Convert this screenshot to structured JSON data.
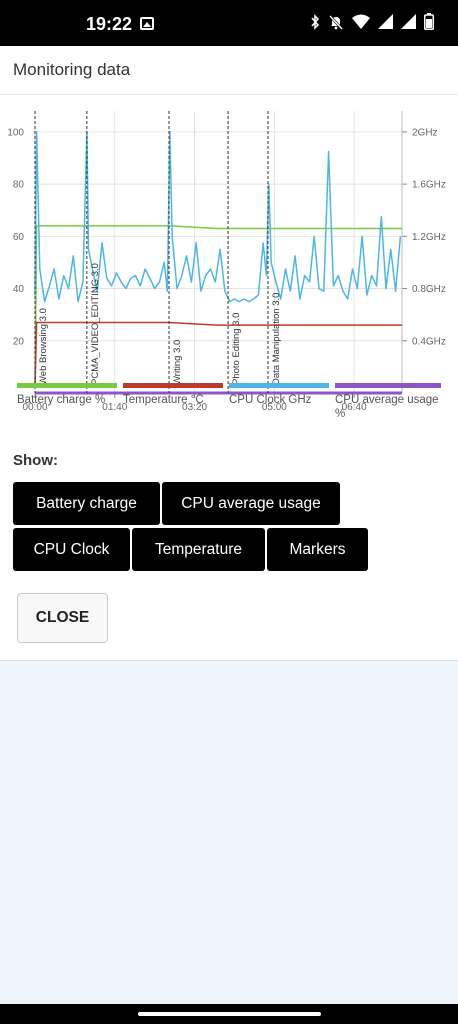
{
  "status_bar": {
    "time": "19:22",
    "icons": [
      "image-icon",
      "bluetooth-icon",
      "mute-icon",
      "wifi-icon",
      "signal-icon",
      "signal-icon",
      "battery-icon"
    ]
  },
  "dialog": {
    "title": "Monitoring data",
    "show_label": "Show:",
    "close_label": "CLOSE"
  },
  "buttons": {
    "battery_charge": "Battery charge",
    "cpu_average_usage": "CPU average usage",
    "cpu_clock": "CPU Clock",
    "temperature": "Temperature",
    "markers": "Markers"
  },
  "legend": {
    "battery": "Battery charge %",
    "temperature": "Temperature °C",
    "cpu_clock": "CPU Clock GHz",
    "cpu_avg": "CPU average usage %"
  },
  "colors": {
    "battery": "#7ac943",
    "temperature": "#c0392b",
    "cpu_clock": "#4db6e6",
    "cpu_avg": "#8e55c7",
    "marker_line": "#333333",
    "grid": "#e2e2e2"
  },
  "chart_data": {
    "type": "line",
    "xlabel": "",
    "ylabel": "",
    "x_unit": "minutes",
    "x_ticks": [
      "00:00",
      "01:40",
      "03:20",
      "05:00",
      "06:40"
    ],
    "y_left_ticks": [
      "100",
      "80",
      "60",
      "40",
      "20"
    ],
    "y_right_ticks": [
      "2GHz",
      "1.6GHz",
      "1.2GHz",
      "0.8GHz",
      "0.4GHz"
    ],
    "xlim": [
      0,
      460
    ],
    "ylim_left": [
      0,
      108
    ],
    "ylim_right": [
      0,
      2.16
    ],
    "markers": [
      {
        "x": 0,
        "label": "Web Browsing 3.0"
      },
      {
        "x": 65,
        "label": "PCMA_VIDEO_EDITING 3.0"
      },
      {
        "x": 168,
        "label": "Writing 3.0"
      },
      {
        "x": 242,
        "label": "Photo Editing 3.0"
      },
      {
        "x": 292,
        "label": "Data Manipulation 3.0"
      }
    ],
    "series": [
      {
        "name": "Battery charge %",
        "x": [
          0,
          2,
          65,
          170,
          228,
          460
        ],
        "y": [
          2,
          64,
          64,
          64,
          63,
          63
        ]
      },
      {
        "name": "Temperature °C",
        "x": [
          0,
          2,
          168,
          228,
          460
        ],
        "y": [
          2,
          27,
          27,
          26,
          26
        ]
      },
      {
        "name": "CPU Clock GHz",
        "x": [
          0,
          2,
          6,
          12,
          18,
          24,
          30,
          36,
          42,
          48,
          54,
          60,
          65,
          67,
          72,
          78,
          84,
          90,
          96,
          102,
          108,
          114,
          120,
          126,
          132,
          138,
          144,
          150,
          156,
          162,
          166,
          169,
          172,
          178,
          184,
          190,
          196,
          202,
          208,
          214,
          220,
          226,
          232,
          238,
          244,
          250,
          256,
          262,
          268,
          274,
          280,
          286,
          290,
          293,
          296,
          302,
          308,
          314,
          320,
          326,
          332,
          338,
          344,
          350,
          356,
          362,
          368,
          374,
          380,
          386,
          392,
          398,
          404,
          410,
          416,
          422,
          428,
          434,
          440,
          446,
          452,
          458
        ],
        "y": [
          0.75,
          2.0,
          0.95,
          0.7,
          0.82,
          0.95,
          0.72,
          0.9,
          0.8,
          1.05,
          0.7,
          0.85,
          2.0,
          1.1,
          0.95,
          0.78,
          1.15,
          0.88,
          0.82,
          0.92,
          0.85,
          0.8,
          0.88,
          0.9,
          0.82,
          0.95,
          0.88,
          0.8,
          0.85,
          1.0,
          0.78,
          2.0,
          1.2,
          0.8,
          0.9,
          1.05,
          0.85,
          1.15,
          0.78,
          0.9,
          0.95,
          0.85,
          1.1,
          0.78,
          0.7,
          0.72,
          0.7,
          0.72,
          0.7,
          0.72,
          0.75,
          1.15,
          0.9,
          1.6,
          1.0,
          0.85,
          0.72,
          0.95,
          0.78,
          1.05,
          0.72,
          0.9,
          0.85,
          1.2,
          0.8,
          0.78,
          1.85,
          0.82,
          0.9,
          0.78,
          0.72,
          0.95,
          0.8,
          1.2,
          0.75,
          0.9,
          0.82,
          1.35,
          0.8,
          1.1,
          0.78,
          1.2
        ]
      },
      {
        "name": "CPU average usage %",
        "x": [
          0,
          460
        ],
        "y": [
          0,
          0
        ]
      }
    ]
  }
}
